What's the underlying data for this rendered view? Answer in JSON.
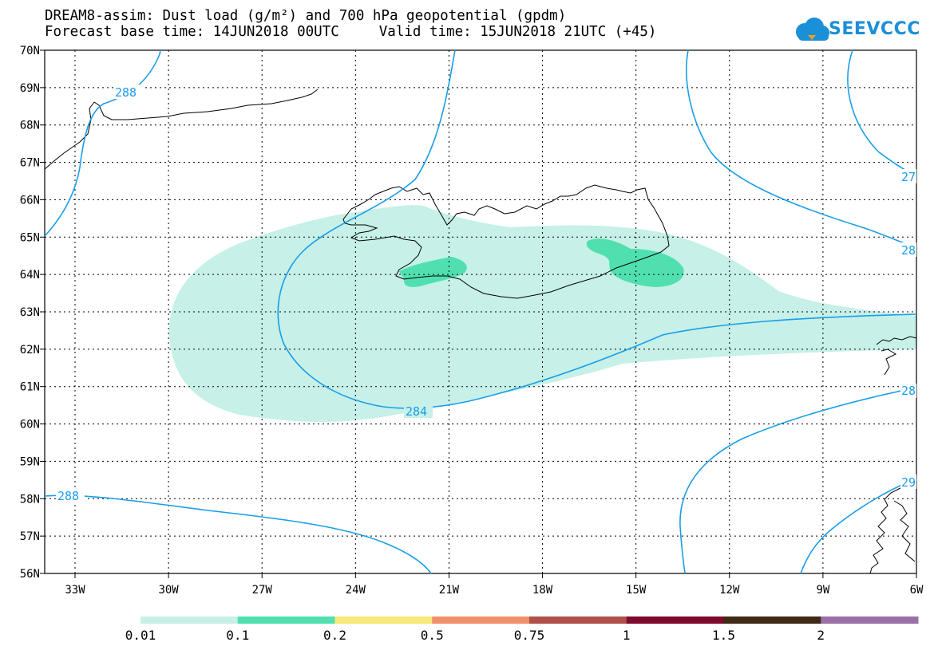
{
  "header": {
    "title_line1": "DREAM8-assim: Dust load (g/m²) and 700 hPa geopotential (gpdm)",
    "forecast_base": "Forecast base time: 14JUN2018 00UTC",
    "valid_time": "Valid time: 15JUN2018 21UTC (+45)"
  },
  "logo": {
    "text": "SEEVCCC",
    "icon": "cloud-icon",
    "color": "#1b8fd8"
  },
  "axes": {
    "lat_labels": [
      "70N",
      "69N",
      "68N",
      "67N",
      "66N",
      "65N",
      "64N",
      "63N",
      "62N",
      "61N",
      "60N",
      "59N",
      "58N",
      "57N",
      "56N"
    ],
    "lon_labels": [
      "33W",
      "30W",
      "27W",
      "24W",
      "21W",
      "18W",
      "15W",
      "12W",
      "9W",
      "6W"
    ]
  },
  "contours": {
    "color": "#1a9ee8",
    "labels": [
      "288",
      "284",
      "288",
      "27",
      "28",
      "28",
      "29"
    ]
  },
  "colorbar": {
    "labels": [
      "0.01",
      "0.1",
      "0.2",
      "0.5",
      "0.75",
      "1",
      "1.5",
      "2"
    ],
    "colors": [
      "#c6f0e8",
      "#50e0b0",
      "#f8e878",
      "#f0906a",
      "#b0504a",
      "#800a2c",
      "#3e2a16",
      "#9a70a6"
    ]
  },
  "dust_colors": {
    "light": "#c6f0e8",
    "medium": "#50e0b0"
  }
}
